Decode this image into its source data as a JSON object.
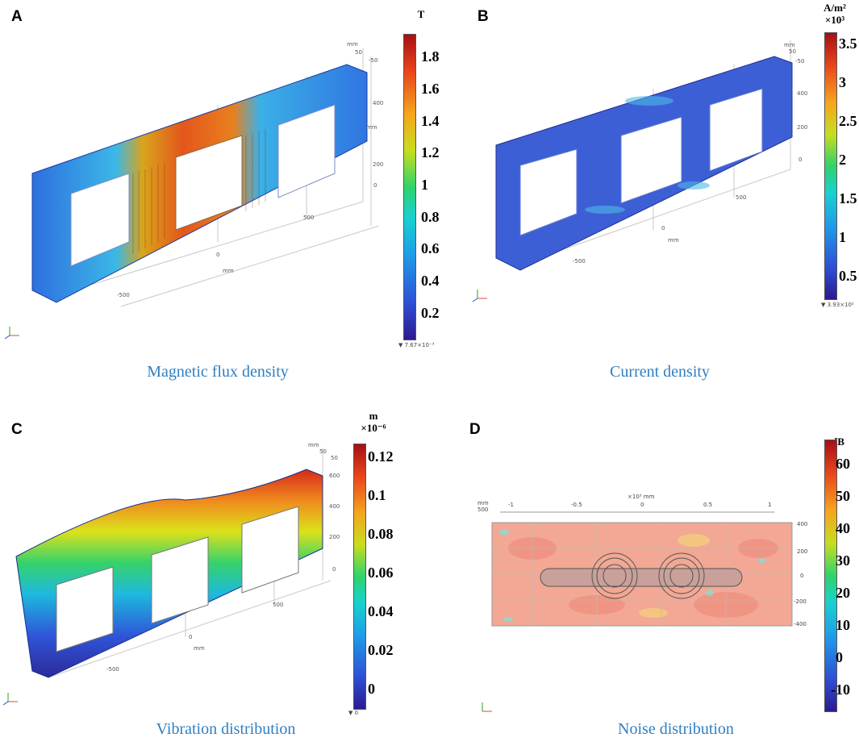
{
  "panels": [
    {
      "letter": "A",
      "caption": "Magnetic flux density",
      "unit": "T",
      "ticks": [
        "1.8",
        "1.6",
        "1.4",
        "1.2",
        "1",
        "0.8",
        "0.6",
        "0.4",
        "0.2"
      ],
      "min_label": "▼ 7.67×10⁻³",
      "axis_labels": [
        "50",
        "-50",
        "400",
        "mm",
        "200",
        "0",
        "500",
        "0",
        "mm",
        "-500",
        "mm"
      ]
    },
    {
      "letter": "B",
      "caption": "Current density",
      "unit_line1": "A/m²",
      "unit_line2": "×10³",
      "ticks": [
        "3.5",
        "3",
        "2.5",
        "2",
        "1.5",
        "1",
        "0.5"
      ],
      "min_label": "▼ 3.93×10²",
      "axis_labels": [
        "mm",
        "50",
        "-50",
        "400",
        "200",
        "0",
        "500",
        "0",
        "mm",
        "-500"
      ]
    },
    {
      "letter": "C",
      "caption": "Vibration distribution",
      "unit_line1": "m",
      "unit_line2": "×10⁻⁶",
      "ticks": [
        "0.12",
        "0.1",
        "0.08",
        "0.06",
        "0.04",
        "0.02",
        "0"
      ],
      "min_label": "▼ 0",
      "axis_labels": [
        "mm",
        "50",
        "50",
        "600",
        "400",
        "200",
        "0",
        "500",
        "0",
        "mm",
        "-500"
      ]
    },
    {
      "letter": "D",
      "caption": "Noise distribution",
      "unit": "dB",
      "ticks": [
        "60",
        "50",
        "40",
        "30",
        "20",
        "10",
        "0",
        "-10"
      ],
      "axis_top": [
        "-1",
        "-0.5",
        "0",
        "0.5",
        "1"
      ],
      "axis_top_unit": "×10³ mm",
      "axis_corner": [
        "mm",
        "500"
      ],
      "axis_right": [
        "400",
        "200",
        "0",
        "-200",
        "-400"
      ]
    }
  ],
  "colors": {
    "caption": "#2e7fc3"
  }
}
